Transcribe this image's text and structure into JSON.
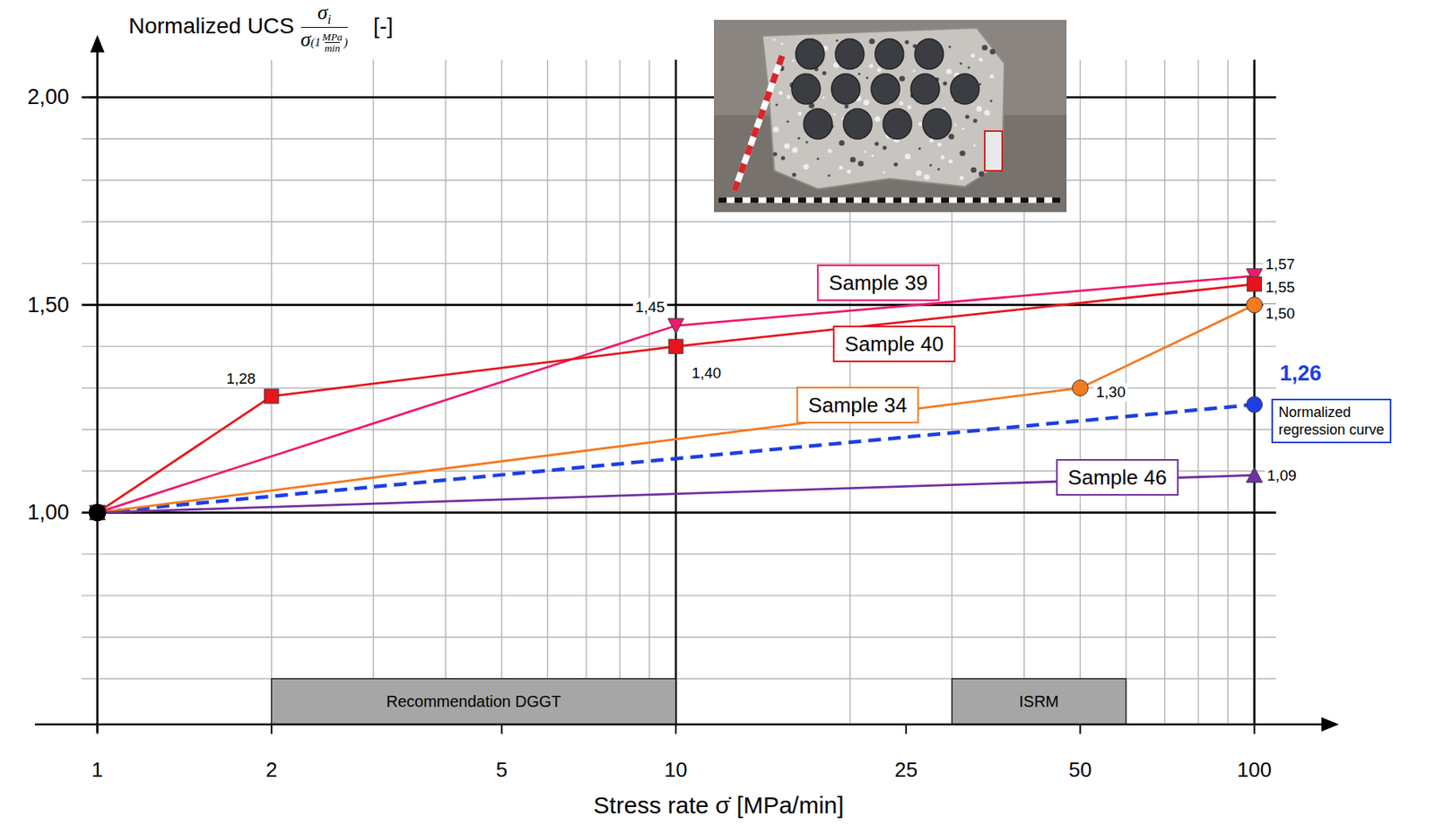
{
  "chart_data": {
    "type": "line",
    "ylabel": {
      "text": "Normalized UCS",
      "numerator": "σ",
      "numerator_sub": "i",
      "denominator": "σ",
      "denominator_sub_open": "(1",
      "denominator_sub_num": "MPa",
      "denominator_sub_den": "min",
      "denominator_sub_close": ")",
      "unit": "[-]"
    },
    "xlabel": "Stress rate σ̇ [MPa/min]",
    "log": "x",
    "grid": true,
    "data_labels": true,
    "xlim": [
      0.78,
      140
    ],
    "ylim": [
      0.49,
      2.15
    ],
    "xticks": [
      1,
      2,
      5,
      10,
      25,
      50,
      100
    ],
    "yticks": [
      {
        "value": 1,
        "label": "1,00"
      },
      {
        "value": 1.5,
        "label": "1,50"
      },
      {
        "value": 2,
        "label": "2,00"
      }
    ],
    "x_major_grid": [
      10,
      100
    ],
    "x_minor_grid": [
      2,
      3,
      4,
      5,
      6,
      7,
      8,
      9,
      20,
      30,
      40,
      50,
      60,
      70,
      80,
      90
    ],
    "y_minor_grid": [
      0.6,
      0.7,
      0.8,
      0.9,
      1.1,
      1.2,
      1.3,
      1.4,
      1.6,
      1.7,
      1.8,
      1.9
    ],
    "grid_xlim": [
      0.94,
      109
    ],
    "grid_ylim": [
      0.49,
      2.09
    ],
    "reference_point": {
      "x": 1,
      "y": 1,
      "color": "#000000"
    },
    "series": [
      {
        "name": "Sample 39",
        "color": "#f0176e",
        "marker": "triangle-down",
        "x": [
          1,
          10,
          100
        ],
        "values": [
          1,
          1.45,
          1.57
        ],
        "value_labels": [
          null,
          "1,45",
          "1,57"
        ]
      },
      {
        "name": "Sample 40",
        "color": "#e8141c",
        "marker": "square",
        "x": [
          1,
          2,
          10,
          100
        ],
        "values": [
          1,
          1.28,
          1.4,
          1.55
        ],
        "value_labels": [
          null,
          "1,28",
          "1,40",
          "1,55"
        ]
      },
      {
        "name": "Sample 34",
        "color": "#f57a1f",
        "marker": "circle",
        "x": [
          1,
          50,
          100
        ],
        "values": [
          1,
          1.3,
          1.5
        ],
        "value_labels": [
          null,
          "1,30",
          "1,50"
        ]
      },
      {
        "name": "Sample 46",
        "color": "#7030a0",
        "marker": "triangle-up",
        "x": [
          1,
          100
        ],
        "values": [
          1,
          1.09
        ],
        "value_labels": [
          null,
          "1,09"
        ]
      },
      {
        "name": "Normalized regression curve",
        "color": "#1c3fe3",
        "marker": "circle",
        "line_style": "dashed",
        "x": [
          1,
          100
        ],
        "values": [
          1,
          1.26
        ],
        "value_labels": [
          null,
          "1,26"
        ]
      }
    ],
    "annotations": [
      {
        "text": "Recommendation DGGT",
        "x": [
          2,
          10
        ],
        "y": [
          0.49,
          0.6
        ]
      },
      {
        "text": "ISRM",
        "x": [
          30,
          60
        ],
        "y": [
          0.49,
          0.6
        ]
      }
    ]
  }
}
